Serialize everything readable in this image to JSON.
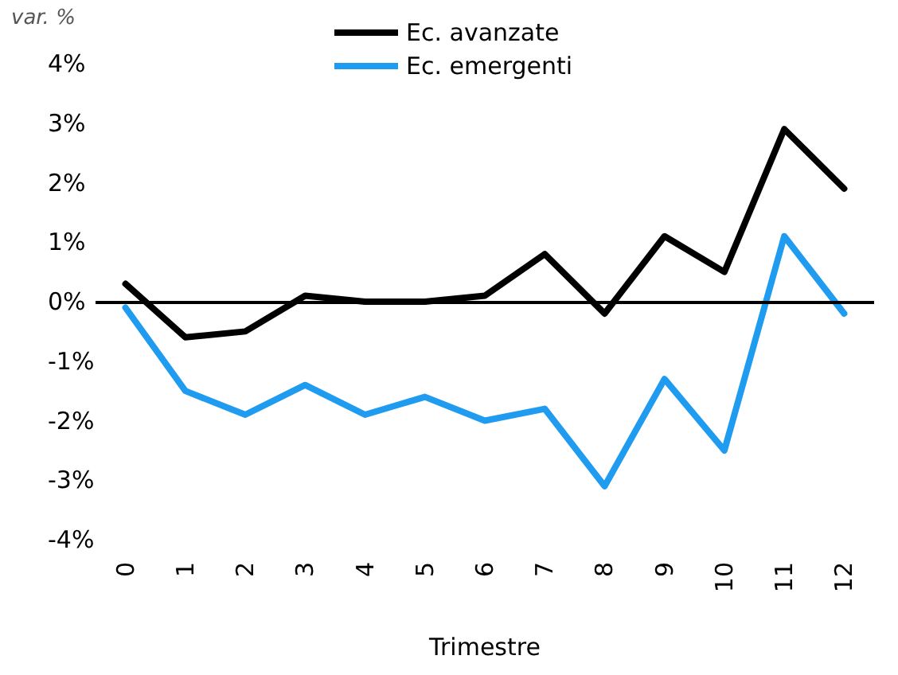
{
  "chart_data": {
    "type": "line",
    "ylabel": "var. %",
    "xlabel": "Trimestre",
    "categories": [
      "0",
      "1",
      "2",
      "3",
      "4",
      "5",
      "6",
      "7",
      "8",
      "9",
      "10",
      "11",
      "12"
    ],
    "series": [
      {
        "name": "Ec. avanzate",
        "color": "#000000",
        "values": [
          0.3,
          -0.6,
          -0.5,
          0.1,
          0,
          0,
          0.1,
          0.8,
          -0.2,
          1.1,
          0.5,
          2.9,
          1.9
        ]
      },
      {
        "name": "Ec. emergenti",
        "color": "#1f9bf0",
        "values": [
          -0.1,
          -1.5,
          -1.9,
          -1.4,
          -1.9,
          -1.6,
          -2.0,
          -1.8,
          -3.1,
          -1.3,
          -2.5,
          1.1,
          -0.2
        ]
      }
    ],
    "ylim": [
      -4,
      4
    ],
    "yticks": [
      {
        "value": -4,
        "label": "-4%"
      },
      {
        "value": -3,
        "label": "-3%"
      },
      {
        "value": -2,
        "label": "-2%"
      },
      {
        "value": -1,
        "label": "-1%"
      },
      {
        "value": 0,
        "label": "0%"
      },
      {
        "value": 1,
        "label": "1%"
      },
      {
        "value": 2,
        "label": "2%"
      },
      {
        "value": 3,
        "label": "3%"
      },
      {
        "value": 4,
        "label": "4%"
      }
    ],
    "ref_lines": [
      {
        "axis": "y",
        "value": 0,
        "color": "#000000"
      }
    ],
    "grid": false,
    "legend": "top",
    "marker": "none",
    "line_style": "solid"
  }
}
